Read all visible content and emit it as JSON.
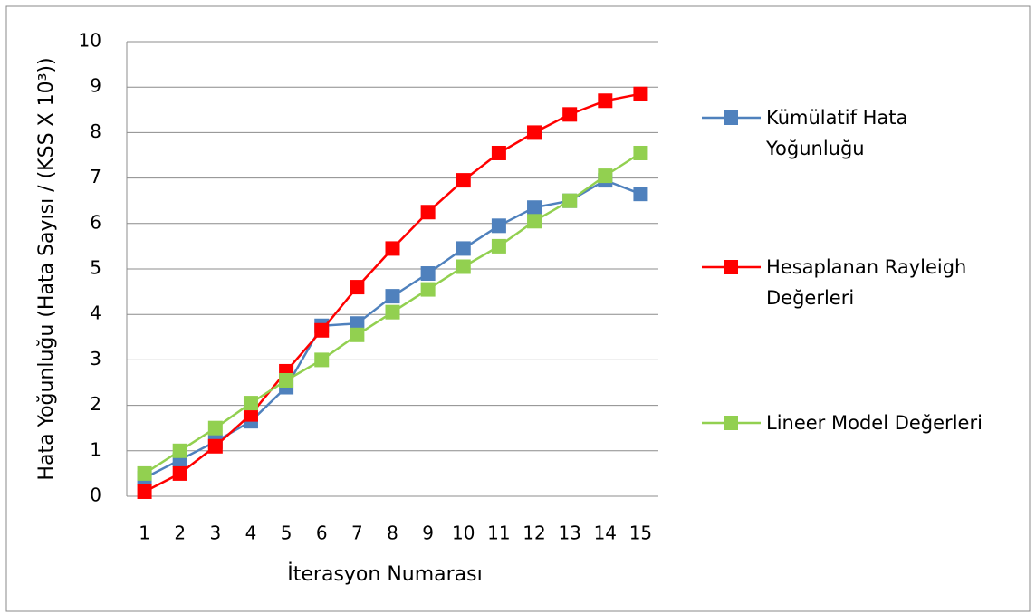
{
  "chart_data": {
    "type": "line",
    "x_label": "İterasyon Numarası",
    "y_label": "Hata Yoğunluğu (Hata Sayısı / (KSS X 10³))",
    "categories": [
      "1",
      "2",
      "3",
      "4",
      "5",
      "6",
      "7",
      "8",
      "9",
      "10",
      "11",
      "12",
      "13",
      "14",
      "15"
    ],
    "series": [
      {
        "name": "Kümülatif Hata Yoğunluğu",
        "color": "#4f81bd",
        "values": [
          0.4,
          0.8,
          1.2,
          1.65,
          2.4,
          3.75,
          3.8,
          4.4,
          4.9,
          5.45,
          5.95,
          6.35,
          6.5,
          6.95,
          6.65
        ]
      },
      {
        "name": "Hesaplanan Rayleigh Değerleri",
        "color": "#ff0000",
        "values": [
          0.1,
          0.5,
          1.1,
          1.8,
          2.75,
          3.65,
          4.6,
          5.45,
          6.25,
          6.95,
          7.55,
          8.0,
          8.4,
          8.7,
          8.85
        ]
      },
      {
        "name": "Lineer Model Değerleri",
        "color": "#92d050",
        "values": [
          0.5,
          1.0,
          1.5,
          2.05,
          2.55,
          3.0,
          3.55,
          4.05,
          4.55,
          5.05,
          5.5,
          6.05,
          6.5,
          7.05,
          7.55
        ]
      }
    ],
    "ylim": [
      0,
      10
    ],
    "yticks": [
      0,
      1,
      2,
      3,
      4,
      5,
      6,
      7,
      8,
      9,
      10
    ],
    "grid": true,
    "legend": "right"
  }
}
